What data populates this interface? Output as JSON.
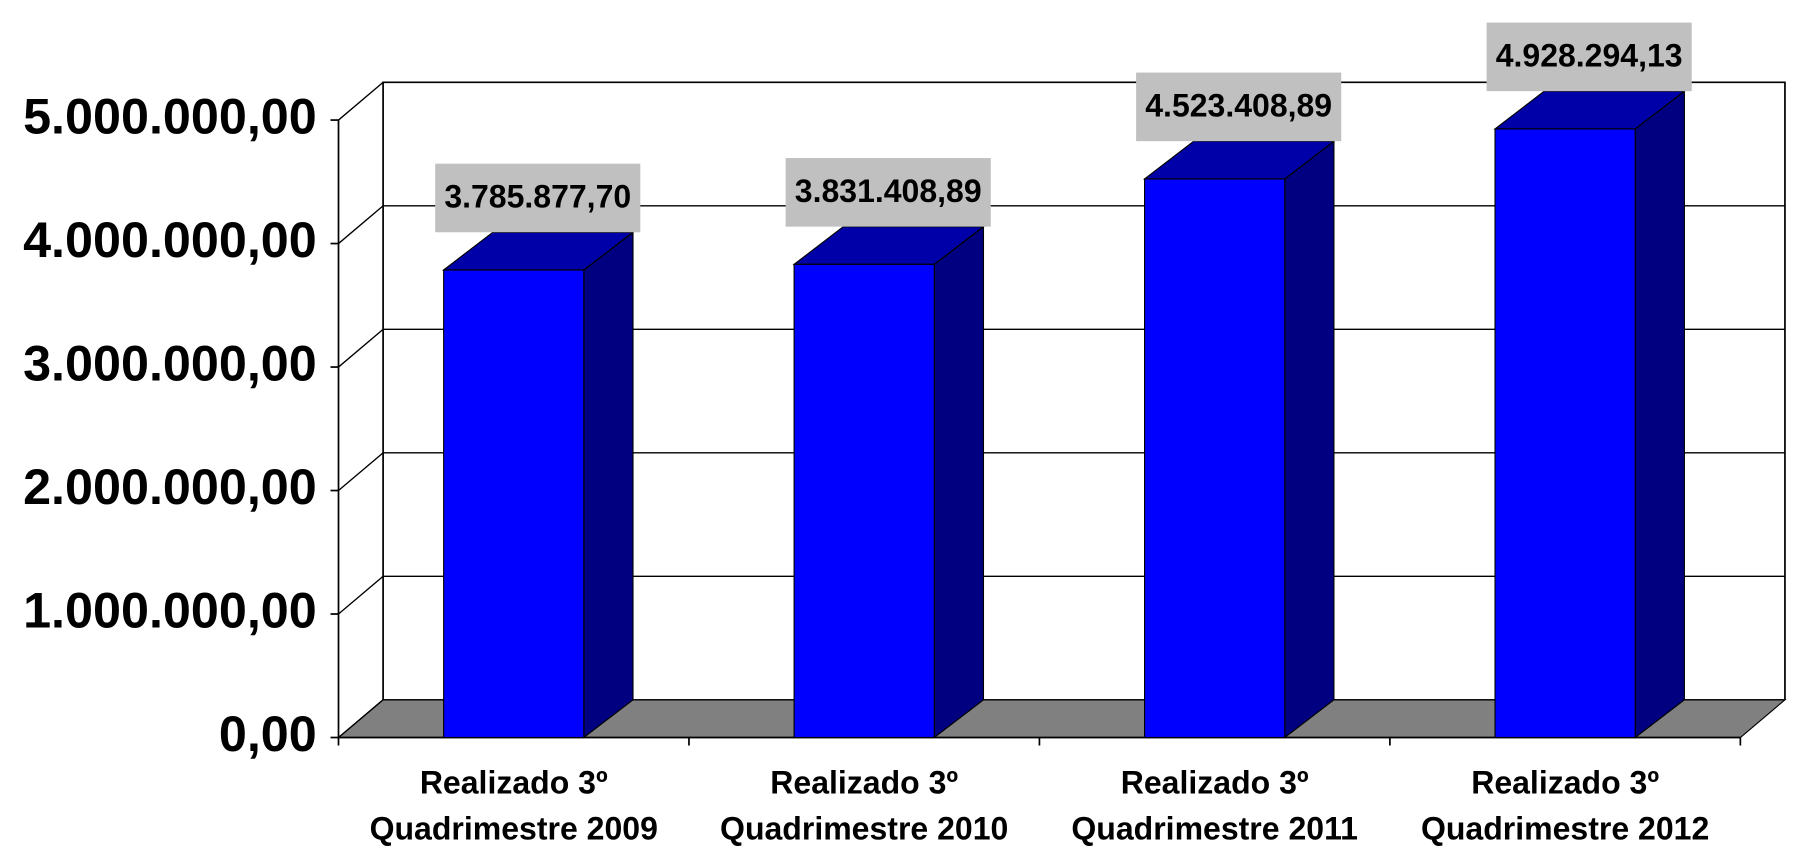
{
  "chart_data": {
    "type": "bar3d",
    "categories": [
      "Realizado 3º Quadrimestre 2009",
      "Realizado 3º Quadrimestre 2010",
      "Realizado 3º Quadrimestre 2011",
      "Realizado 3º Quadrimestre 2012"
    ],
    "values": [
      3785877.7,
      3831408.89,
      4523408.89,
      4928294.13
    ],
    "value_labels": [
      "3.785.877,70",
      "3.831.408,89",
      "4.523.408,89",
      "4.928.294,13"
    ],
    "color": "#0000ff",
    "ylim": [
      0,
      5000000
    ],
    "yticks": [
      {
        "value": 0,
        "label": "0,00"
      },
      {
        "value": 1000000,
        "label": "1.000.000,00"
      },
      {
        "value": 2000000,
        "label": "2.000.000,00"
      },
      {
        "value": 3000000,
        "label": "3.000.000,00"
      },
      {
        "value": 4000000,
        "label": "4.000.000,00"
      },
      {
        "value": 5000000,
        "label": "5.000.000,00"
      }
    ],
    "grid": true
  }
}
